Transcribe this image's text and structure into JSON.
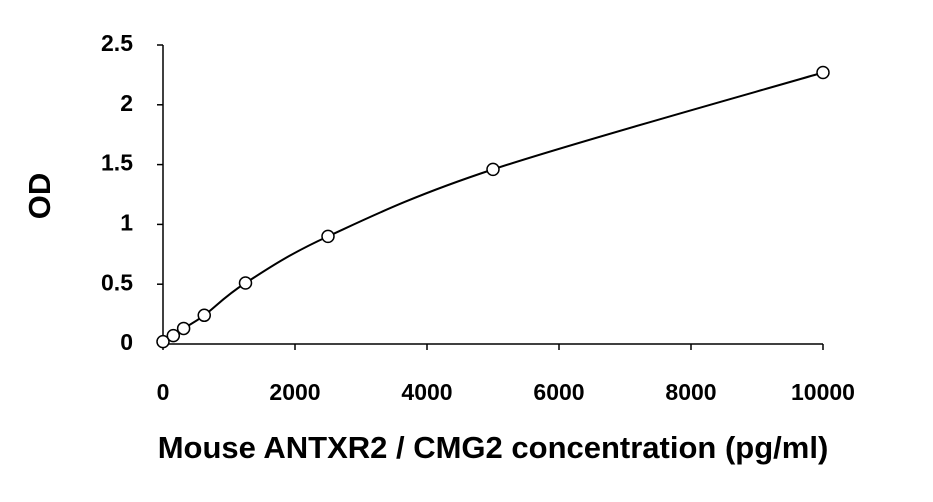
{
  "chart_data": {
    "type": "scatter",
    "x_label": "Mouse ANTXR2 / CMG2 concentration (pg/ml)",
    "y_label": "OD",
    "x": [
      0,
      156.25,
      312.5,
      625,
      1250,
      2500,
      5000,
      10000
    ],
    "series": [
      {
        "color": "#000000",
        "values": [
          0.02,
          0.07,
          0.13,
          0.24,
          0.51,
          0.9,
          1.46,
          2.27
        ]
      }
    ],
    "smooth_line": true,
    "xlim": [
      0,
      10000
    ],
    "xticks": [
      0,
      2000,
      4000,
      6000,
      8000,
      10000
    ],
    "ylim": [
      0,
      2.5
    ],
    "yticks": [
      0,
      0.5,
      1,
      1.5,
      2,
      2.5
    ],
    "grid": false
  }
}
